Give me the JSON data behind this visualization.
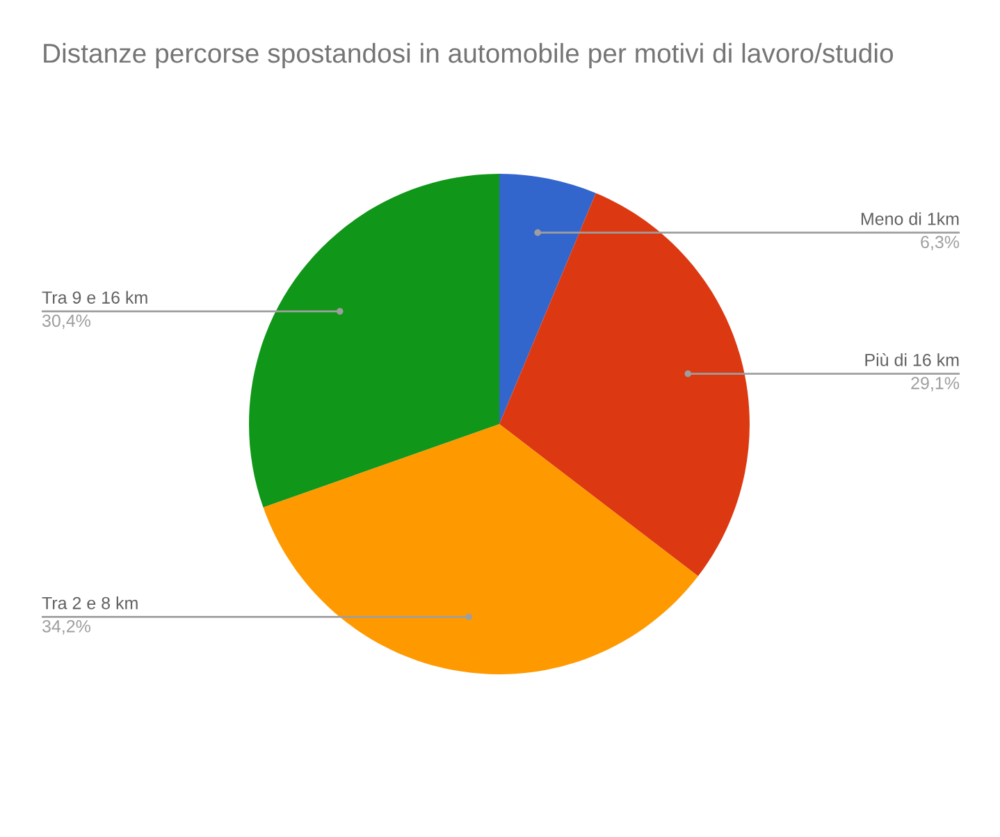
{
  "chart_data": {
    "type": "pie",
    "title": "Distanze percorse spostandosi in automobile per motivi di lavoro/studio",
    "categories": [
      "Meno di 1km",
      "Più di 16 km",
      "Tra 2 e 8 km",
      "Tra 9 e 16 km"
    ],
    "values": [
      6.3,
      29.1,
      34.2,
      30.4
    ],
    "colors": [
      "#3366cc",
      "#dc3912",
      "#ff9900",
      "#109618"
    ],
    "value_labels": [
      "6,3%",
      "29,1%",
      "34,2%",
      "30,4%"
    ]
  }
}
